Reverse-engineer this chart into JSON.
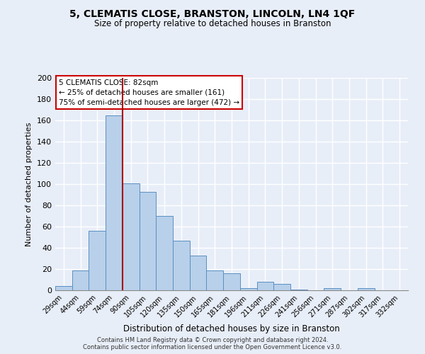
{
  "title": "5, CLEMATIS CLOSE, BRANSTON, LINCOLN, LN4 1QF",
  "subtitle": "Size of property relative to detached houses in Branston",
  "xlabel": "Distribution of detached houses by size in Branston",
  "ylabel": "Number of detached properties",
  "bar_labels": [
    "29sqm",
    "44sqm",
    "59sqm",
    "74sqm",
    "90sqm",
    "105sqm",
    "120sqm",
    "135sqm",
    "150sqm",
    "165sqm",
    "181sqm",
    "196sqm",
    "211sqm",
    "226sqm",
    "241sqm",
    "256sqm",
    "271sqm",
    "287sqm",
    "302sqm",
    "317sqm",
    "332sqm"
  ],
  "bar_values": [
    4,
    19,
    56,
    165,
    101,
    93,
    70,
    47,
    33,
    19,
    16,
    2,
    8,
    6,
    1,
    0,
    2,
    0,
    2,
    0,
    0
  ],
  "bar_color": "#b8d0ea",
  "bar_edge_color": "#5a8fc2",
  "vline_color": "#aa0000",
  "vline_pos": 3.5,
  "annotation_text_line1": "5 CLEMATIS CLOSE: 82sqm",
  "annotation_text_line2": "← 25% of detached houses are smaller (161)",
  "annotation_text_line3": "75% of semi-detached houses are larger (472) →",
  "ylim": [
    0,
    200
  ],
  "yticks": [
    0,
    20,
    40,
    60,
    80,
    100,
    120,
    140,
    160,
    180,
    200
  ],
  "bg_color": "#e8eef8",
  "grid_color": "#ffffff",
  "footnote1": "Contains HM Land Registry data © Crown copyright and database right 2024.",
  "footnote2": "Contains public sector information licensed under the Open Government Licence v3.0."
}
